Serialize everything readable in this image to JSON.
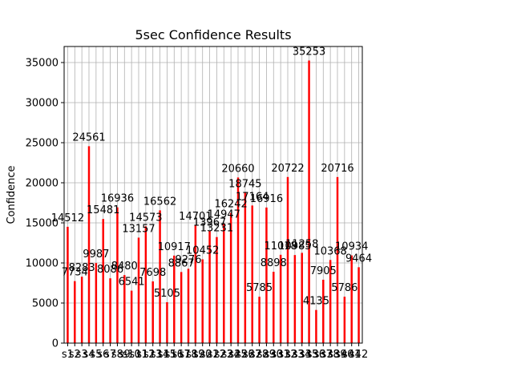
{
  "chart_data": {
    "type": "bar",
    "title": "5sec Confidence Results",
    "xlabel": "",
    "ylabel": "Confidence",
    "ylim": [
      0,
      37000
    ],
    "yticks": [
      0,
      5000,
      10000,
      15000,
      20000,
      25000,
      30000,
      35000
    ],
    "grid": true,
    "bar_color": "#ff0000",
    "categories": [
      "s1",
      "s2",
      "s3",
      "s4",
      "s5",
      "s6",
      "s7",
      "s8",
      "s9",
      "s10",
      "s11",
      "s12",
      "s13",
      "s14",
      "s15",
      "s16",
      "s17",
      "s18",
      "s19",
      "s20",
      "s21",
      "s22",
      "s23",
      "s24",
      "s25",
      "s26",
      "s27",
      "s28",
      "s29",
      "s30",
      "s31",
      "s32",
      "s33",
      "s34",
      "s35",
      "s36",
      "s37",
      "s38",
      "s39",
      "s40",
      "s41",
      "s42"
    ],
    "values": [
      14512,
      7734,
      8283,
      24561,
      9987,
      15481,
      8086,
      16936,
      8480,
      6541,
      13157,
      14573,
      7698,
      16562,
      5105,
      10917,
      8867,
      9276,
      14701,
      10452,
      13967,
      13231,
      14947,
      16242,
      20660,
      18745,
      17164,
      5785,
      16916,
      8898,
      11018,
      20722,
      10985,
      11258,
      35253,
      4135,
      7905,
      10368,
      20716,
      5786,
      10934,
      9464
    ]
  }
}
